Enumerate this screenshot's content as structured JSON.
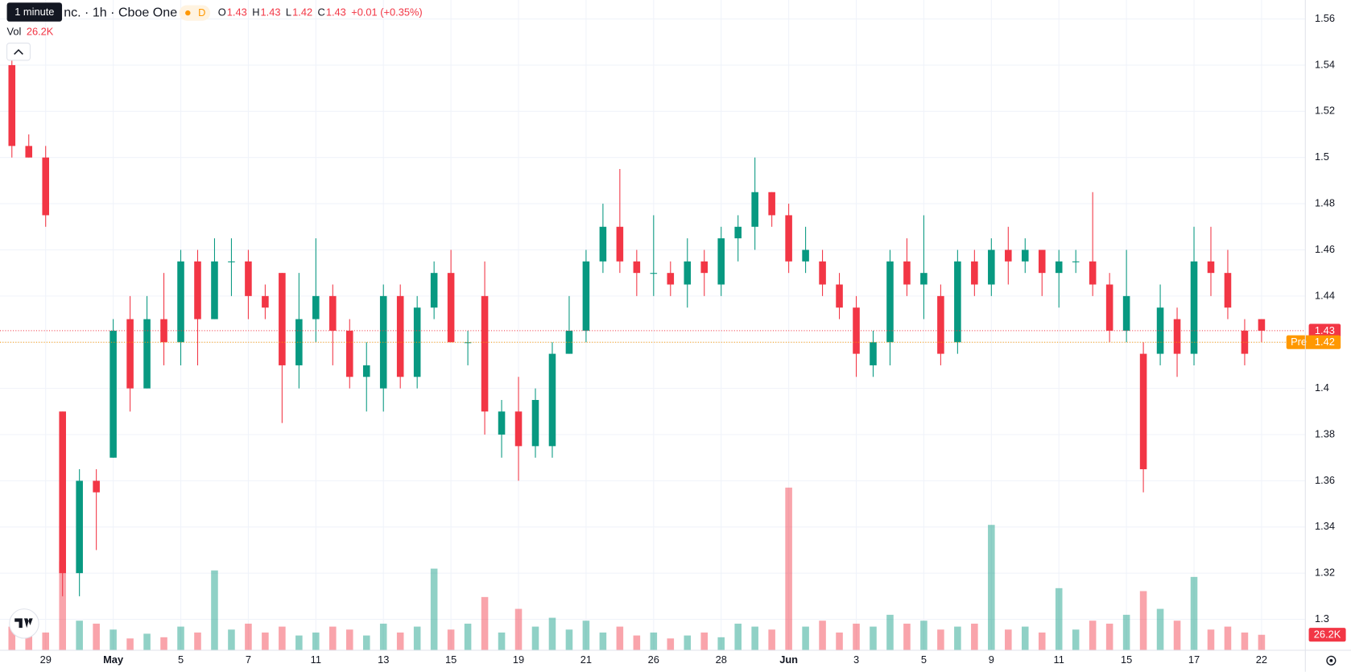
{
  "chart_data": {
    "type": "candlestick",
    "tooltip": "1 minute",
    "title": "nc. · 1h · Cboe One",
    "badge": "D",
    "legend": [
      {
        "key": "O",
        "value": 1.43
      },
      {
        "key": "H",
        "value": 1.43
      },
      {
        "key": "L",
        "value": 1.42
      },
      {
        "key": "C",
        "value": 1.43
      }
    ],
    "change": "+0.01 (+0.35%)",
    "volume_legend": {
      "key": "Vol",
      "value": 26200,
      "label": "26.2K"
    },
    "colors": {
      "up": "#089981",
      "down": "#f23645",
      "pre": "#ff9800"
    },
    "categories": [
      null,
      null,
      "29",
      null,
      null,
      null,
      "May",
      null,
      null,
      null,
      "5",
      null,
      null,
      null,
      "7",
      null,
      null,
      null,
      "11",
      null,
      null,
      null,
      "13",
      null,
      null,
      null,
      "15",
      null,
      null,
      null,
      "19",
      null,
      null,
      null,
      "21",
      null,
      null,
      null,
      "26",
      null,
      null,
      null,
      "28",
      null,
      null,
      null,
      "Jun",
      null,
      null,
      null,
      "3",
      null,
      null,
      null,
      "5",
      null,
      null,
      null,
      "9",
      null,
      null,
      null,
      "11",
      null,
      null,
      null,
      "15",
      null,
      null,
      null,
      "17",
      null,
      null,
      null,
      "22"
    ],
    "open": [
      1.54,
      1.505,
      1.5,
      1.39,
      1.32,
      1.36,
      1.37,
      1.43,
      1.4,
      1.43,
      1.42,
      1.455,
      1.43,
      1.455,
      1.455,
      1.44,
      1.45,
      1.41,
      1.43,
      1.44,
      1.425,
      1.405,
      1.4,
      1.44,
      1.405,
      1.435,
      1.45,
      1.42,
      1.44,
      1.38,
      1.39,
      1.375,
      1.375,
      1.415,
      1.425,
      1.455,
      1.47,
      1.455,
      1.45,
      1.45,
      1.445,
      1.455,
      1.445,
      1.465,
      1.47,
      1.485,
      1.475,
      1.455,
      1.455,
      1.445,
      1.435,
      1.41,
      1.42,
      1.455,
      1.445,
      1.44,
      1.42,
      1.455,
      1.445,
      1.46,
      1.455,
      1.46,
      1.45,
      1.455,
      1.455,
      1.445,
      1.425,
      1.415,
      1.415,
      1.43,
      1.415,
      1.455,
      1.45,
      1.425,
      1.43
    ],
    "high": [
      1.545,
      1.51,
      1.505,
      1.39,
      1.365,
      1.365,
      1.43,
      1.44,
      1.44,
      1.45,
      1.46,
      1.46,
      1.465,
      1.465,
      1.46,
      1.445,
      1.45,
      1.45,
      1.465,
      1.445,
      1.43,
      1.42,
      1.445,
      1.445,
      1.44,
      1.455,
      1.46,
      1.425,
      1.455,
      1.395,
      1.405,
      1.4,
      1.42,
      1.44,
      1.46,
      1.48,
      1.495,
      1.46,
      1.475,
      1.455,
      1.465,
      1.46,
      1.47,
      1.475,
      1.5,
      1.485,
      1.48,
      1.47,
      1.46,
      1.45,
      1.44,
      1.425,
      1.46,
      1.465,
      1.475,
      1.445,
      1.46,
      1.46,
      1.465,
      1.47,
      1.465,
      1.46,
      1.46,
      1.46,
      1.485,
      1.45,
      1.46,
      1.42,
      1.445,
      1.435,
      1.47,
      1.47,
      1.46,
      1.43,
      1.43
    ],
    "low": [
      1.5,
      1.5,
      1.47,
      1.31,
      1.31,
      1.33,
      1.37,
      1.39,
      1.4,
      1.41,
      1.41,
      1.41,
      1.43,
      1.44,
      1.43,
      1.43,
      1.385,
      1.4,
      1.42,
      1.41,
      1.4,
      1.39,
      1.39,
      1.4,
      1.4,
      1.43,
      1.42,
      1.41,
      1.38,
      1.37,
      1.36,
      1.37,
      1.37,
      1.415,
      1.42,
      1.45,
      1.45,
      1.44,
      1.44,
      1.44,
      1.435,
      1.44,
      1.44,
      1.455,
      1.46,
      1.47,
      1.45,
      1.45,
      1.44,
      1.43,
      1.405,
      1.405,
      1.41,
      1.44,
      1.43,
      1.41,
      1.415,
      1.44,
      1.44,
      1.445,
      1.45,
      1.44,
      1.435,
      1.45,
      1.44,
      1.42,
      1.42,
      1.355,
      1.41,
      1.405,
      1.41,
      1.44,
      1.43,
      1.41,
      1.42
    ],
    "close": [
      1.505,
      1.5,
      1.475,
      1.32,
      1.36,
      1.355,
      1.425,
      1.4,
      1.43,
      1.42,
      1.455,
      1.43,
      1.455,
      1.455,
      1.44,
      1.435,
      1.41,
      1.43,
      1.44,
      1.425,
      1.405,
      1.41,
      1.44,
      1.405,
      1.435,
      1.45,
      1.42,
      1.42,
      1.39,
      1.39,
      1.375,
      1.395,
      1.415,
      1.425,
      1.455,
      1.47,
      1.455,
      1.45,
      1.45,
      1.445,
      1.455,
      1.45,
      1.465,
      1.47,
      1.485,
      1.475,
      1.455,
      1.46,
      1.445,
      1.435,
      1.415,
      1.42,
      1.455,
      1.445,
      1.45,
      1.415,
      1.455,
      1.445,
      1.46,
      1.455,
      1.46,
      1.45,
      1.455,
      1.455,
      1.445,
      1.425,
      1.44,
      1.365,
      1.435,
      1.415,
      1.455,
      1.45,
      1.435,
      1.415,
      1.425
    ],
    "volume": [
      40000,
      25000,
      30000,
      150000,
      50000,
      45000,
      35000,
      20000,
      28000,
      22000,
      40000,
      30000,
      135000,
      35000,
      45000,
      30000,
      40000,
      25000,
      30000,
      40000,
      35000,
      25000,
      45000,
      30000,
      40000,
      138000,
      35000,
      45000,
      90000,
      30000,
      70000,
      40000,
      55000,
      35000,
      50000,
      30000,
      40000,
      25000,
      30000,
      20000,
      25000,
      30000,
      22000,
      45000,
      40000,
      35000,
      275000,
      40000,
      50000,
      30000,
      45000,
      40000,
      60000,
      45000,
      50000,
      35000,
      40000,
      45000,
      212000,
      35000,
      40000,
      30000,
      105000,
      35000,
      50000,
      45000,
      60000,
      100000,
      70000,
      50000,
      124000,
      35000,
      40000,
      30000,
      26200
    ],
    "ylim": [
      1.2866,
      1.5682
    ],
    "yticks": [
      1.3,
      1.32,
      1.34,
      1.36,
      1.38,
      1.4,
      1.42,
      1.44,
      1.46,
      1.48,
      1.5,
      1.52,
      1.54,
      1.56
    ],
    "volume_lim": [
      0,
      380000
    ],
    "last_price": {
      "value": 1.425,
      "label": "1.43"
    },
    "pre_market": {
      "key": "Pre",
      "value": 1.42
    },
    "grid": true
  }
}
